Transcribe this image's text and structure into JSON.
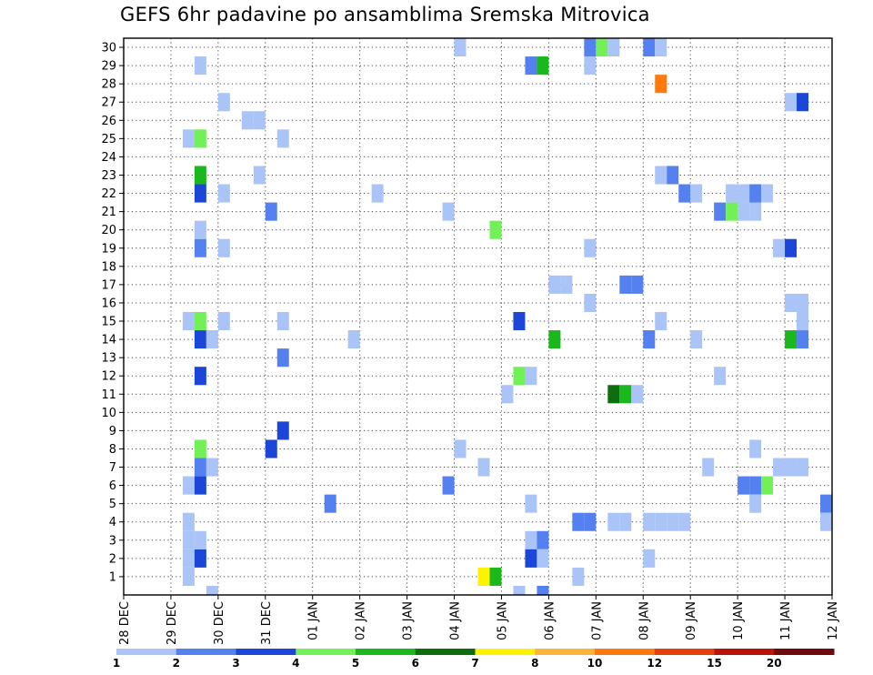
{
  "chart_data": {
    "type": "heatmap",
    "title": "GEFS 6hr padavine po ansamblima Sremska Mitrovica",
    "xlabel": "",
    "ylabel": "",
    "x_ticks": [
      "28 DEC",
      "29 DEC",
      "30 DEC",
      "31 DEC",
      "01 JAN",
      "02 JAN",
      "03 JAN",
      "04 JAN",
      "05 JAN",
      "06 JAN",
      "07 JAN",
      "08 JAN",
      "09 JAN",
      "10 JAN",
      "11 JAN",
      "12 JAN"
    ],
    "x_range_days": [
      0,
      15
    ],
    "y_ticks": [
      1,
      2,
      3,
      4,
      5,
      6,
      7,
      8,
      9,
      10,
      11,
      12,
      13,
      14,
      15,
      16,
      17,
      18,
      19,
      20,
      21,
      22,
      23,
      24,
      25,
      26,
      27,
      28,
      29,
      30
    ],
    "y_range": [
      0,
      30.5
    ],
    "grid": true,
    "colorbar": {
      "labels": [
        "1",
        "2",
        "3",
        "4",
        "5",
        "6",
        "7",
        "8",
        "10",
        "12",
        "15",
        "20"
      ],
      "colors": [
        "#aac4f7",
        "#5580f0",
        "#1c46d8",
        "#72f058",
        "#1ab81c",
        "#0d6e10",
        "#fef200",
        "#fcb33a",
        "#fc7a0e",
        "#e5400a",
        "#b8140a",
        "#6e0a0a"
      ]
    },
    "cells": [
      {
        "x": 1.25,
        "y": 1,
        "v": 1
      },
      {
        "x": 1.25,
        "y": 2,
        "v": 1
      },
      {
        "x": 1.25,
        "y": 3,
        "v": 1
      },
      {
        "x": 1.25,
        "y": 4,
        "v": 1
      },
      {
        "x": 1.5,
        "y": 2,
        "v": 3
      },
      {
        "x": 1.5,
        "y": 3,
        "v": 1
      },
      {
        "x": 1.75,
        "y": 0,
        "v": 1
      },
      {
        "x": 1.25,
        "y": 6,
        "v": 1
      },
      {
        "x": 1.5,
        "y": 6,
        "v": 3
      },
      {
        "x": 1.5,
        "y": 7,
        "v": 2
      },
      {
        "x": 1.75,
        "y": 7,
        "v": 1
      },
      {
        "x": 1.5,
        "y": 8,
        "v": 4
      },
      {
        "x": 1.5,
        "y": 12,
        "v": 3
      },
      {
        "x": 1.5,
        "y": 14,
        "v": 3
      },
      {
        "x": 1.75,
        "y": 14,
        "v": 1
      },
      {
        "x": 1.25,
        "y": 15,
        "v": 1
      },
      {
        "x": 1.5,
        "y": 15,
        "v": 4
      },
      {
        "x": 2,
        "y": 15,
        "v": 1
      },
      {
        "x": 1.5,
        "y": 19,
        "v": 2
      },
      {
        "x": 1.5,
        "y": 20,
        "v": 1
      },
      {
        "x": 2,
        "y": 19,
        "v": 1
      },
      {
        "x": 1.5,
        "y": 22,
        "v": 3
      },
      {
        "x": 1.5,
        "y": 23,
        "v": 5
      },
      {
        "x": 2,
        "y": 22,
        "v": 1
      },
      {
        "x": 1.25,
        "y": 25,
        "v": 1
      },
      {
        "x": 1.5,
        "y": 25,
        "v": 4
      },
      {
        "x": 1.5,
        "y": 29,
        "v": 1
      },
      {
        "x": 2,
        "y": 27,
        "v": 1
      },
      {
        "x": 2.5,
        "y": 26,
        "v": 1
      },
      {
        "x": 2.75,
        "y": 26,
        "v": 1
      },
      {
        "x": 2.75,
        "y": 23,
        "v": 1
      },
      {
        "x": 3.25,
        "y": 25,
        "v": 1
      },
      {
        "x": 3,
        "y": 21,
        "v": 2
      },
      {
        "x": 3,
        "y": 8,
        "v": 3
      },
      {
        "x": 3.25,
        "y": 9,
        "v": 3
      },
      {
        "x": 3.25,
        "y": 13,
        "v": 2
      },
      {
        "x": 3.25,
        "y": 15,
        "v": 1
      },
      {
        "x": 4.25,
        "y": 5,
        "v": 2
      },
      {
        "x": 4.75,
        "y": 14,
        "v": 1
      },
      {
        "x": 5.25,
        "y": 22,
        "v": 1
      },
      {
        "x": 7,
        "y": 30,
        "v": 1
      },
      {
        "x": 7,
        "y": 8,
        "v": 1
      },
      {
        "x": 6.75,
        "y": 21,
        "v": 1
      },
      {
        "x": 6.75,
        "y": 6,
        "v": 2
      },
      {
        "x": 7.5,
        "y": 7,
        "v": 1
      },
      {
        "x": 7.5,
        "y": 1,
        "v": 7
      },
      {
        "x": 7.75,
        "y": 1,
        "v": 5
      },
      {
        "x": 7.75,
        "y": 20,
        "v": 4
      },
      {
        "x": 8,
        "y": 11,
        "v": 1
      },
      {
        "x": 8.25,
        "y": 12,
        "v": 4
      },
      {
        "x": 8.25,
        "y": 15,
        "v": 3
      },
      {
        "x": 8.25,
        "y": 0,
        "v": 1
      },
      {
        "x": 8.5,
        "y": 12,
        "v": 1
      },
      {
        "x": 8.5,
        "y": 5,
        "v": 1
      },
      {
        "x": 8.5,
        "y": 3,
        "v": 1
      },
      {
        "x": 8.5,
        "y": 2,
        "v": 3
      },
      {
        "x": 8.75,
        "y": 3,
        "v": 2
      },
      {
        "x": 8.75,
        "y": 2,
        "v": 1
      },
      {
        "x": 8.75,
        "y": 0,
        "v": 2
      },
      {
        "x": 8.5,
        "y": 29,
        "v": 2
      },
      {
        "x": 8.75,
        "y": 29,
        "v": 5
      },
      {
        "x": 9,
        "y": 14,
        "v": 5
      },
      {
        "x": 9,
        "y": 17,
        "v": 1
      },
      {
        "x": 9.25,
        "y": 17,
        "v": 1
      },
      {
        "x": 9.5,
        "y": 1,
        "v": 1
      },
      {
        "x": 9.5,
        "y": 4,
        "v": 2
      },
      {
        "x": 9.75,
        "y": 4,
        "v": 2
      },
      {
        "x": 9.75,
        "y": 16,
        "v": 1
      },
      {
        "x": 9.75,
        "y": 19,
        "v": 1
      },
      {
        "x": 9.75,
        "y": 29,
        "v": 1
      },
      {
        "x": 9.75,
        "y": 30,
        "v": 2
      },
      {
        "x": 10,
        "y": 30,
        "v": 4
      },
      {
        "x": 10.25,
        "y": 30,
        "v": 1
      },
      {
        "x": 10.25,
        "y": 4,
        "v": 1
      },
      {
        "x": 10.5,
        "y": 4,
        "v": 1
      },
      {
        "x": 10.25,
        "y": 11,
        "v": 6
      },
      {
        "x": 10.5,
        "y": 11,
        "v": 5
      },
      {
        "x": 10.75,
        "y": 11,
        "v": 1
      },
      {
        "x": 10.5,
        "y": 17,
        "v": 2
      },
      {
        "x": 10.75,
        "y": 17,
        "v": 2
      },
      {
        "x": 11,
        "y": 2,
        "v": 1
      },
      {
        "x": 11,
        "y": 4,
        "v": 1
      },
      {
        "x": 11.25,
        "y": 4,
        "v": 1
      },
      {
        "x": 11.5,
        "y": 4,
        "v": 1
      },
      {
        "x": 11.75,
        "y": 4,
        "v": 1
      },
      {
        "x": 11,
        "y": 14,
        "v": 2
      },
      {
        "x": 11.25,
        "y": 15,
        "v": 1
      },
      {
        "x": 11.25,
        "y": 23,
        "v": 1
      },
      {
        "x": 11.5,
        "y": 23,
        "v": 2
      },
      {
        "x": 11.25,
        "y": 28,
        "v": 9
      },
      {
        "x": 11,
        "y": 30,
        "v": 2
      },
      {
        "x": 11.25,
        "y": 30,
        "v": 1
      },
      {
        "x": 11.75,
        "y": 22,
        "v": 2
      },
      {
        "x": 12,
        "y": 22,
        "v": 1
      },
      {
        "x": 12,
        "y": 14,
        "v": 1
      },
      {
        "x": 12.25,
        "y": 7,
        "v": 1
      },
      {
        "x": 12.5,
        "y": 12,
        "v": 1
      },
      {
        "x": 12.5,
        "y": 21,
        "v": 2
      },
      {
        "x": 12.75,
        "y": 21,
        "v": 4
      },
      {
        "x": 13,
        "y": 21,
        "v": 1
      },
      {
        "x": 13.25,
        "y": 21,
        "v": 1
      },
      {
        "x": 12.75,
        "y": 22,
        "v": 1
      },
      {
        "x": 13,
        "y": 22,
        "v": 1
      },
      {
        "x": 13.25,
        "y": 22,
        "v": 2
      },
      {
        "x": 13.5,
        "y": 22,
        "v": 1
      },
      {
        "x": 13,
        "y": 6,
        "v": 2
      },
      {
        "x": 13.25,
        "y": 6,
        "v": 2
      },
      {
        "x": 13.5,
        "y": 6,
        "v": 4
      },
      {
        "x": 13.25,
        "y": 5,
        "v": 1
      },
      {
        "x": 13.25,
        "y": 8,
        "v": 1
      },
      {
        "x": 13.75,
        "y": 7,
        "v": 1
      },
      {
        "x": 14,
        "y": 7,
        "v": 1
      },
      {
        "x": 14.25,
        "y": 7,
        "v": 1
      },
      {
        "x": 14.75,
        "y": 5,
        "v": 2
      },
      {
        "x": 14.75,
        "y": 4,
        "v": 1
      },
      {
        "x": 13.75,
        "y": 19,
        "v": 1
      },
      {
        "x": 14,
        "y": 19,
        "v": 3
      },
      {
        "x": 14,
        "y": 16,
        "v": 1
      },
      {
        "x": 14.25,
        "y": 16,
        "v": 1
      },
      {
        "x": 14,
        "y": 14,
        "v": 5
      },
      {
        "x": 14.25,
        "y": 14,
        "v": 2
      },
      {
        "x": 14.25,
        "y": 15,
        "v": 1
      },
      {
        "x": 14,
        "y": 27,
        "v": 1
      },
      {
        "x": 14.25,
        "y": 27,
        "v": 3
      }
    ]
  }
}
